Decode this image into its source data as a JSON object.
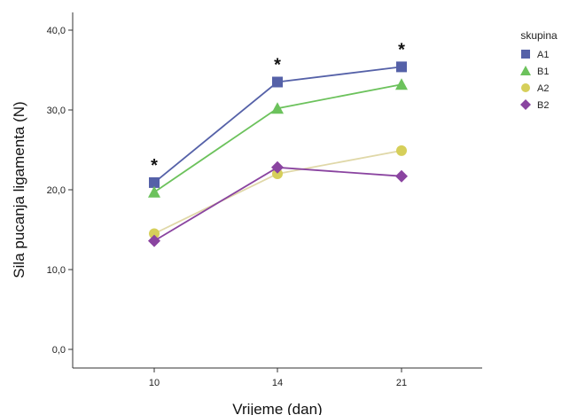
{
  "chart_data": {
    "type": "line",
    "xlabel": "Vrijeme (dan)",
    "ylabel": "Sila pucanja ligamenta (N)",
    "categories": [
      "10",
      "14",
      "21"
    ],
    "ylim": [
      0,
      40
    ],
    "yticks": [
      0,
      10,
      20,
      30,
      40
    ],
    "ytick_labels": [
      "0,0",
      "10,0",
      "20,0",
      "30,0",
      "40,0"
    ],
    "grid": false,
    "legend": {
      "title": "skupina",
      "position": "top-right"
    },
    "series": [
      {
        "name": "A1",
        "marker": "square",
        "color": "#5561a8",
        "values": [
          20.9,
          33.5,
          35.4
        ]
      },
      {
        "name": "B1",
        "marker": "triangle",
        "color": "#6cc25c",
        "values": [
          19.7,
          30.2,
          33.2
        ]
      },
      {
        "name": "A2",
        "marker": "circle",
        "color": "#d6cf5a",
        "line_color": "#e0d8a8",
        "values": [
          14.5,
          22.0,
          24.9
        ]
      },
      {
        "name": "B2",
        "marker": "diamond",
        "color": "#8a44a0",
        "values": [
          13.6,
          22.8,
          21.7
        ]
      }
    ],
    "annotations": [
      {
        "text": "*",
        "category": "10"
      },
      {
        "text": "*",
        "category": "14"
      },
      {
        "text": "*",
        "category": "21"
      }
    ]
  }
}
